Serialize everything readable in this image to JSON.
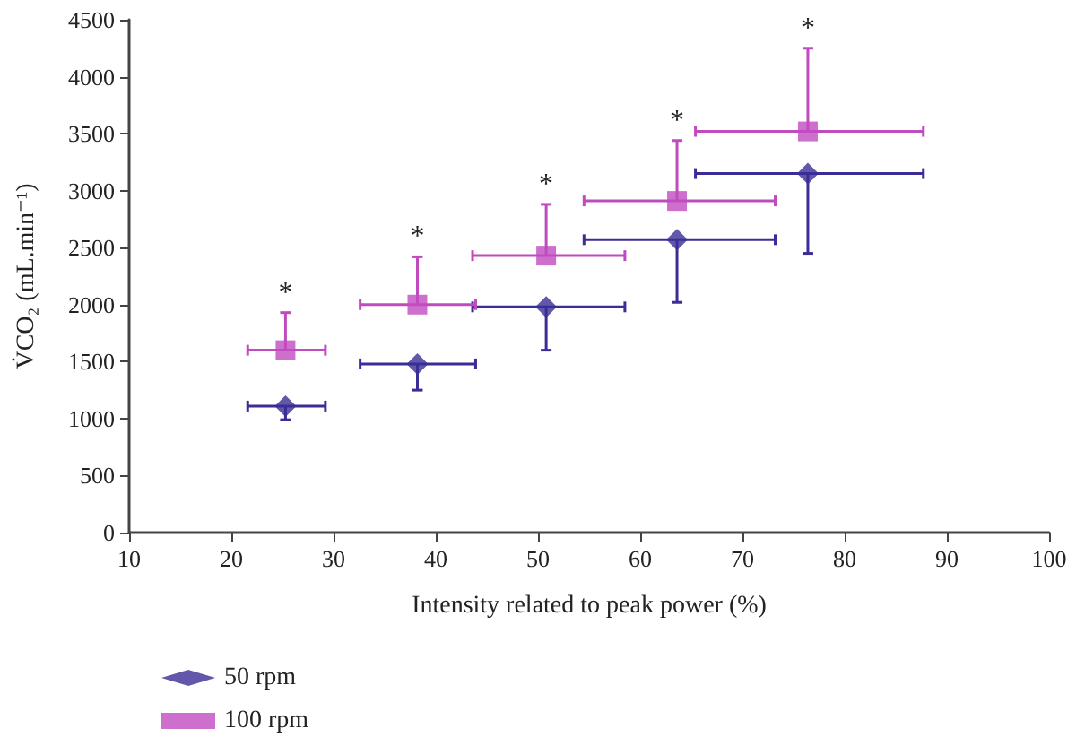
{
  "chart_data": {
    "type": "scatter",
    "xlabel": "Intensity related to peak power (%)",
    "ylabel": "V̇CO₂ (mL.min⁻¹)",
    "xlim": [
      10,
      100
    ],
    "xticks": [
      10,
      20,
      30,
      40,
      50,
      60,
      70,
      80,
      90,
      100
    ],
    "ylim": [
      0,
      4500
    ],
    "yticks": [
      0,
      500,
      1000,
      1500,
      2000,
      2500,
      3000,
      3500,
      4000,
      4500
    ],
    "grid": false,
    "legend": "bottom left",
    "series": [
      {
        "name": "50 rpm",
        "color": "#3a2d96",
        "marker": "diamond",
        "x": [
          25.3,
          38.2,
          50.8,
          63.6,
          76.4
        ],
        "values": [
          1110,
          1480,
          1980,
          2570,
          3150
        ],
        "errors": [
          [
            990,
            1110
          ],
          [
            1250,
            1480
          ],
          [
            1600,
            1980
          ],
          [
            2020,
            2570
          ],
          [
            2450,
            3150
          ]
        ],
        "xerrors": [
          [
            21.6,
            29.2
          ],
          [
            32.6,
            43.9
          ],
          [
            43.6,
            58.5
          ],
          [
            54.5,
            73.2
          ],
          [
            65.4,
            87.7
          ]
        ]
      },
      {
        "name": "100 rpm",
        "color": "#c04bbf",
        "marker": "square",
        "x": [
          25.3,
          38.2,
          50.8,
          63.6,
          76.4
        ],
        "values": [
          1600,
          2000,
          2430,
          2910,
          3520
        ],
        "errors": [
          [
            1600,
            1930
          ],
          [
            2000,
            2420
          ],
          [
            2430,
            2880
          ],
          [
            2910,
            3440
          ],
          [
            3520,
            4250
          ]
        ],
        "xerrors": [
          [
            21.6,
            29.2
          ],
          [
            32.6,
            43.9
          ],
          [
            43.6,
            58.5
          ],
          [
            54.5,
            73.2
          ],
          [
            65.4,
            87.7
          ]
        ]
      }
    ],
    "annotations": [
      {
        "text": "*",
        "x": 25.3,
        "y": 1930
      },
      {
        "text": "*",
        "x": 38.2,
        "y": 2420
      },
      {
        "text": "*",
        "x": 50.8,
        "y": 2880
      },
      {
        "text": "*",
        "x": 63.6,
        "y": 3440
      },
      {
        "text": "*",
        "x": 76.4,
        "y": 4250
      }
    ]
  }
}
